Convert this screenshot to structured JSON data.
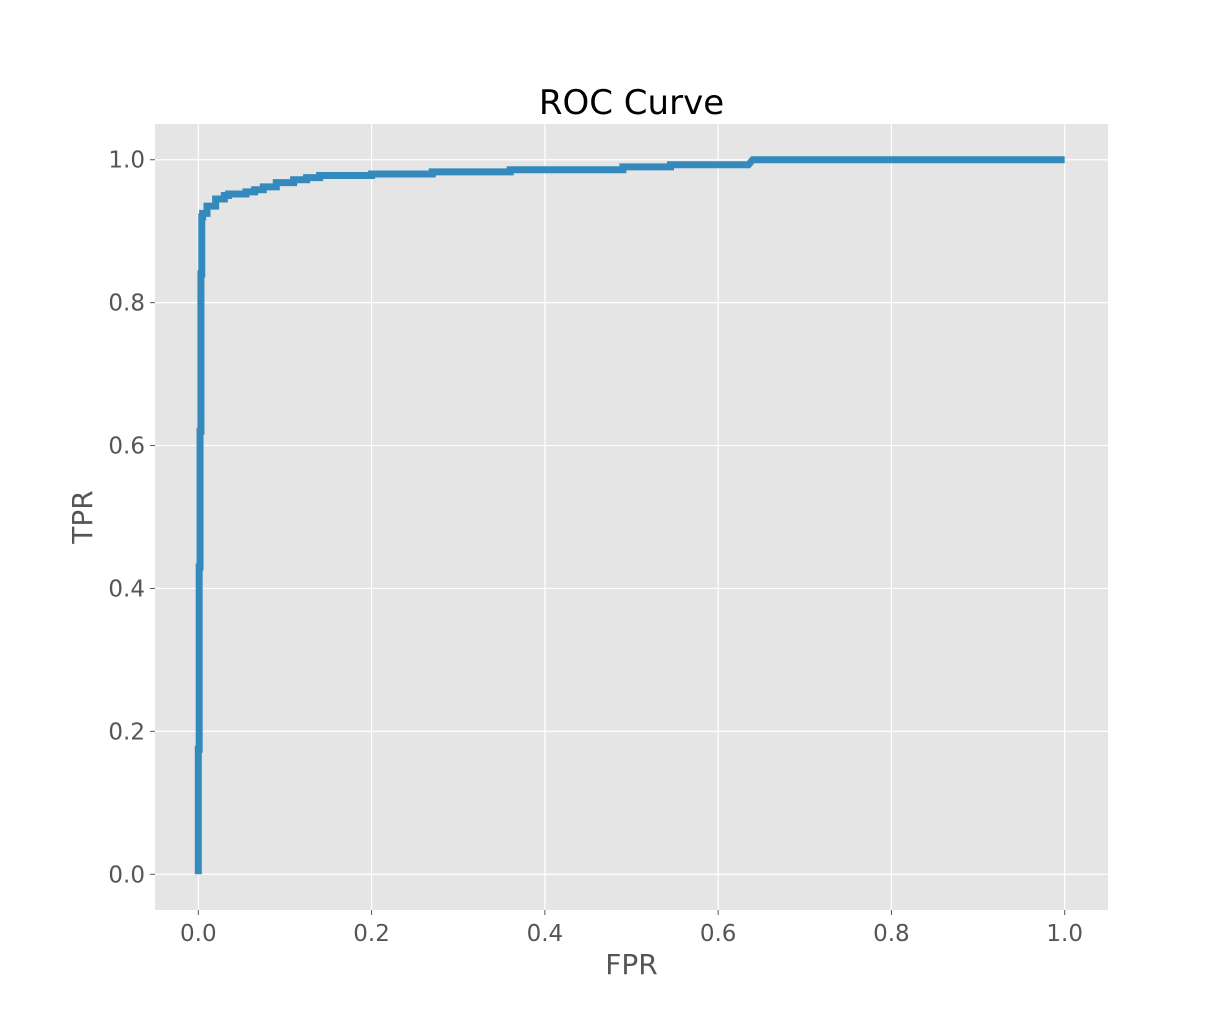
{
  "chart_data": {
    "type": "line",
    "title": "ROC Curve",
    "xlabel": "FPR",
    "ylabel": "TPR",
    "xlim": [
      -0.05,
      1.05
    ],
    "ylim": [
      -0.05,
      1.05
    ],
    "xticks": [
      0.0,
      0.2,
      0.4,
      0.6,
      0.8,
      1.0
    ],
    "xtick_labels": [
      "0.0",
      "0.2",
      "0.4",
      "0.6",
      "0.8",
      "1.0"
    ],
    "yticks": [
      0.0,
      0.2,
      0.4,
      0.6,
      0.8,
      1.0
    ],
    "ytick_labels": [
      "0.0",
      "0.2",
      "0.4",
      "0.6",
      "0.8",
      "1.0"
    ],
    "grid": true,
    "legend": "none",
    "colors": {
      "plot_background": "#e5e5e5",
      "grid": "#ffffff",
      "line": "#348abd",
      "text": "#555555",
      "title": "#000000"
    },
    "series": [
      {
        "x": [
          0.0,
          0.0,
          0.001,
          0.001,
          0.002,
          0.002,
          0.003,
          0.003,
          0.004,
          0.004,
          0.005,
          0.005,
          0.01,
          0.01,
          0.02,
          0.02,
          0.03,
          0.03,
          0.035,
          0.035,
          0.055,
          0.055,
          0.065,
          0.065,
          0.075,
          0.075,
          0.09,
          0.09,
          0.11,
          0.11,
          0.125,
          0.125,
          0.14,
          0.14,
          0.2,
          0.2,
          0.27,
          0.27,
          0.36,
          0.36,
          0.49,
          0.49,
          0.545,
          0.545,
          0.635,
          0.64,
          1.0
        ],
        "y": [
          0.0,
          0.175,
          0.175,
          0.43,
          0.43,
          0.62,
          0.62,
          0.84,
          0.84,
          0.92,
          0.92,
          0.925,
          0.925,
          0.935,
          0.935,
          0.945,
          0.945,
          0.95,
          0.95,
          0.952,
          0.952,
          0.955,
          0.955,
          0.958,
          0.958,
          0.962,
          0.962,
          0.968,
          0.968,
          0.972,
          0.972,
          0.975,
          0.975,
          0.978,
          0.978,
          0.98,
          0.98,
          0.983,
          0.983,
          0.986,
          0.986,
          0.99,
          0.99,
          0.993,
          0.993,
          1.0,
          1.0
        ]
      }
    ]
  }
}
